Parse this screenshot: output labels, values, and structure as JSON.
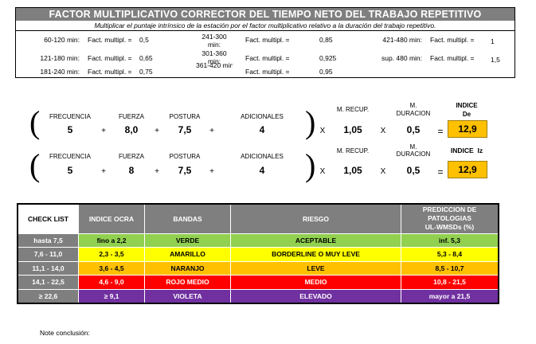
{
  "factor_table": {
    "title": "FACTOR MULTIPLICATIVO CORRECTOR DEL TIEMPO NETO DEL TRABAJO REPETITIVO",
    "subtitle": "Multiplicar el puntaje intrínsico de la estación por el factor multiplicativo relativo a la duración del trabajo repetitivo.",
    "col1": [
      {
        "range": "60-120 min:",
        "label": "Fact. multipl. =",
        "value": "0,5"
      },
      {
        "range": "121-180 min:",
        "label": "Fact. multipl. =",
        "value": "0,65"
      },
      {
        "range": "181-240 min:",
        "label": "Fact. multipl. =",
        "value": "0,75"
      }
    ],
    "col2": [
      {
        "range": "241-300 min:",
        "label": "Fact. multipl. =",
        "value": "0,85"
      },
      {
        "range": "301-360 min:",
        "label": "Fact. multipl. =",
        "value": "0,925"
      },
      {
        "range": "361-420 min:",
        "label": "Fact. multipl. =",
        "value": "0,95"
      }
    ],
    "col3": [
      {
        "range": "421-480 min:",
        "label": "Fact. multipl. =",
        "value": "1"
      },
      {
        "range": "sup. 480 min:",
        "label": "Fact. multipl. =",
        "value": "1,5"
      }
    ]
  },
  "equations": {
    "labels": {
      "frecuencia": "FRECUENCIA",
      "fuerza": "FUERZA",
      "postura": "POSTURA",
      "adicionales": "ADICIONALES",
      "m_recup": "M. RECUP.",
      "m_duracion_1": "M.",
      "m_duracion_2": "DURACION"
    },
    "ops": {
      "plus": "+",
      "times": "X",
      "equals": "=",
      "open": "(",
      "close": ")"
    },
    "right": {
      "frecuencia": "5",
      "fuerza": "8,0",
      "postura": "7,5",
      "adicionales": "4",
      "m_recup": "1,05",
      "m_duracion": "0,5",
      "indice_label_1": "INDICE",
      "indice_label_2": "De",
      "indice": "12,9"
    },
    "left": {
      "frecuencia": "5",
      "fuerza": "8",
      "postura": "7,5",
      "adicionales": "4",
      "m_recup": "1,05",
      "m_duracion": "0,5",
      "indice_label": "INDICE  Iz",
      "indice": "12,9"
    }
  },
  "checklist": {
    "headers": [
      "CHECK LIST",
      "INDICE OCRA",
      "BANDAS",
      "RIESGO",
      "PREDICCION DE PATOLOGIAS UL-WMSDs (%)"
    ],
    "header_last_lines": [
      "PREDICCION DE",
      "PATOLOGIAS",
      "UL-WMSDs (%)"
    ],
    "rows": [
      {
        "check": "hasta 7,5",
        "ocra": "fino a 2,2",
        "banda": "VERDE",
        "riesgo": "ACEPTABLE",
        "pred": "inf. 5,3",
        "color": "#92d050",
        "text": "#000000"
      },
      {
        "check": "7,6 - 11,0",
        "ocra": "2,3 - 3,5",
        "banda": "AMARILLO",
        "riesgo": "BORDERLINE O MUY LEVE",
        "pred": "5,3 - 8,4",
        "color": "#ffff00",
        "text": "#000000"
      },
      {
        "check": "11,1 - 14,0",
        "ocra": "3,6 - 4,5",
        "banda": "NARANJO",
        "riesgo": "LEVE",
        "pred": "8,5 - 10,7",
        "color": "#ffc000",
        "text": "#000000"
      },
      {
        "check": "14,1 - 22,5",
        "ocra": "4,6 - 9,0",
        "banda": "ROJO MEDIO",
        "riesgo": "MEDIO",
        "pred": "10,8 - 21,5",
        "color": "#ff0000",
        "text": "#ffffff"
      },
      {
        "check": "≥ 22,6",
        "ocra": "≥ 9,1",
        "banda": "VIOLETA",
        "riesgo": "ELEVADO",
        "pred": "mayor a 21,5",
        "color": "#7030a0",
        "text": "#ffffff"
      }
    ],
    "check_col_color": "#7f7f7f"
  },
  "note": "Note conclusión:"
}
